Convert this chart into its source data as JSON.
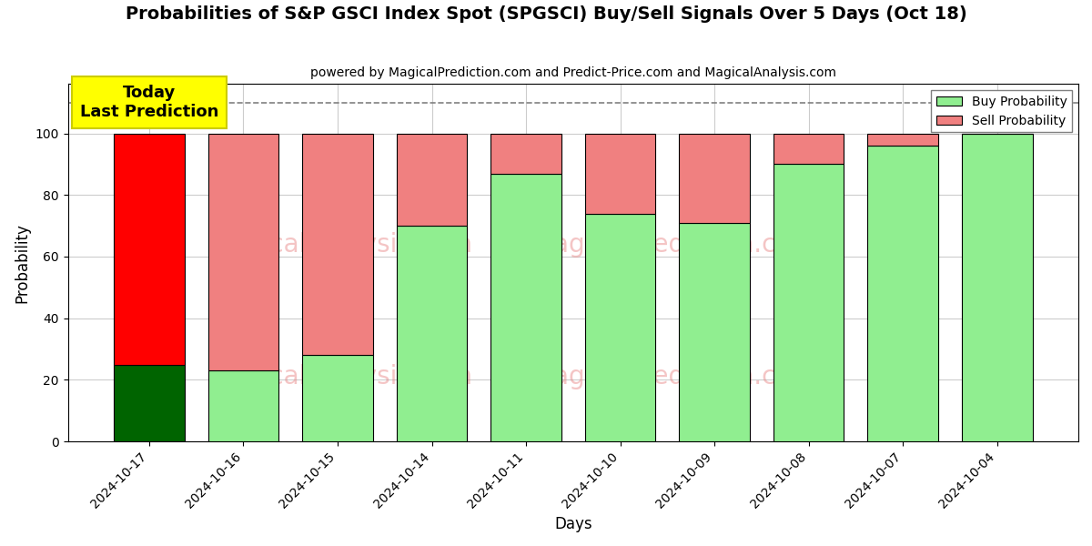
{
  "title": "Probabilities of S&P GSCI Index Spot (SPGSCI) Buy/Sell Signals Over 5 Days (Oct 18)",
  "subtitle": "powered by MagicalPrediction.com and Predict-Price.com and MagicalAnalysis.com",
  "xlabel": "Days",
  "ylabel": "Probability",
  "categories": [
    "2024-10-17",
    "2024-10-16",
    "2024-10-15",
    "2024-10-14",
    "2024-10-11",
    "2024-10-10",
    "2024-10-09",
    "2024-10-08",
    "2024-10-07",
    "2024-10-04"
  ],
  "buy_values": [
    25,
    23,
    28,
    70,
    87,
    74,
    71,
    90,
    96,
    100
  ],
  "sell_values": [
    75,
    77,
    72,
    30,
    13,
    26,
    29,
    10,
    4,
    0
  ],
  "today_bar_buy_color": "#006400",
  "today_bar_sell_color": "#ff0000",
  "normal_bar_buy_color": "#90EE90",
  "normal_bar_sell_color": "#F08080",
  "today_label_bg": "#ffff00",
  "today_label_text": "Today\nLast Prediction",
  "dashed_line_y": 110,
  "ylim": [
    0,
    116
  ],
  "yticks": [
    0,
    20,
    40,
    60,
    80,
    100
  ],
  "legend_buy_label": "Buy Probability",
  "legend_sell_label": "Sell Probability",
  "background_color": "#ffffff",
  "grid_color": "#cccccc",
  "watermark_color": "#e88080",
  "watermark_alpha": 0.45,
  "watermark_fontsize": 20
}
